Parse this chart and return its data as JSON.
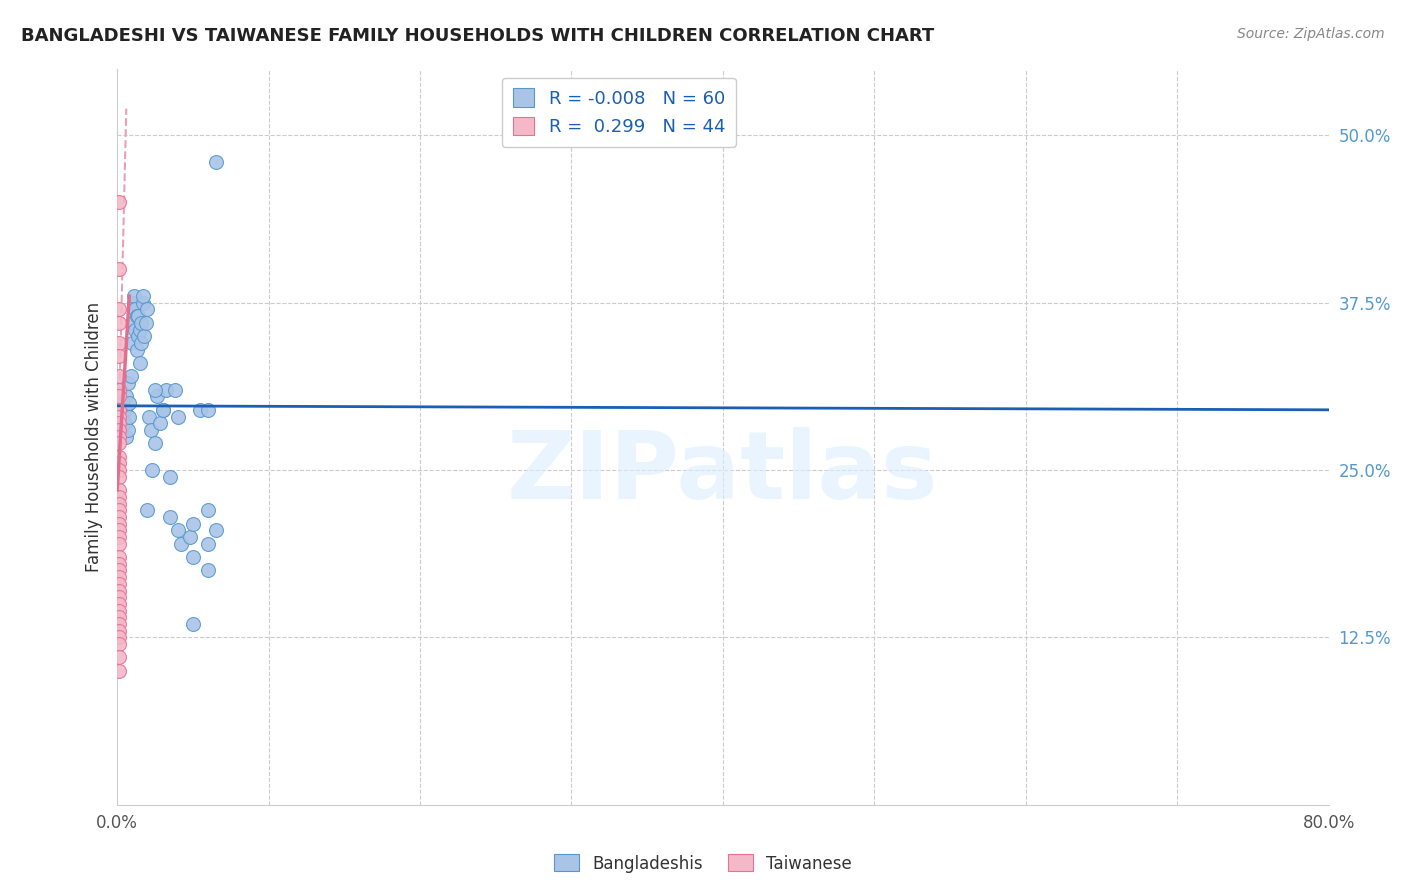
{
  "title": "BANGLADESHI VS TAIWANESE FAMILY HOUSEHOLDS WITH CHILDREN CORRELATION CHART",
  "source": "Source: ZipAtlas.com",
  "ylabel": "Family Households with Children",
  "bg_color": "#ffffff",
  "grid_color": "#cccccc",
  "watermark": "ZIPatlas",
  "bangladeshi_x": [
    0.002,
    0.003,
    0.004,
    0.004,
    0.005,
    0.005,
    0.006,
    0.006,
    0.007,
    0.007,
    0.008,
    0.008,
    0.009,
    0.01,
    0.01,
    0.011,
    0.011,
    0.012,
    0.012,
    0.013,
    0.013,
    0.014,
    0.014,
    0.015,
    0.015,
    0.016,
    0.016,
    0.017,
    0.017,
    0.018,
    0.019,
    0.02,
    0.021,
    0.022,
    0.023,
    0.025,
    0.026,
    0.028,
    0.03,
    0.032,
    0.035,
    0.038,
    0.042,
    0.048,
    0.02,
    0.025,
    0.03,
    0.035,
    0.04,
    0.05,
    0.055,
    0.06,
    0.04,
    0.05,
    0.06,
    0.06,
    0.05,
    0.065,
    0.06,
    0.065
  ],
  "bangladeshi_y": [
    0.31,
    0.295,
    0.285,
    0.3,
    0.295,
    0.285,
    0.305,
    0.275,
    0.315,
    0.28,
    0.3,
    0.29,
    0.32,
    0.345,
    0.36,
    0.375,
    0.38,
    0.355,
    0.37,
    0.365,
    0.34,
    0.365,
    0.35,
    0.355,
    0.33,
    0.36,
    0.345,
    0.375,
    0.38,
    0.35,
    0.36,
    0.37,
    0.29,
    0.28,
    0.25,
    0.27,
    0.305,
    0.285,
    0.295,
    0.31,
    0.245,
    0.31,
    0.195,
    0.2,
    0.22,
    0.31,
    0.295,
    0.215,
    0.29,
    0.135,
    0.295,
    0.175,
    0.205,
    0.21,
    0.195,
    0.22,
    0.185,
    0.48,
    0.295,
    0.205
  ],
  "taiwanese_x": [
    0.001,
    0.001,
    0.001,
    0.001,
    0.001,
    0.001,
    0.001,
    0.001,
    0.001,
    0.001,
    0.001,
    0.001,
    0.001,
    0.001,
    0.001,
    0.001,
    0.001,
    0.001,
    0.001,
    0.001,
    0.001,
    0.001,
    0.001,
    0.001,
    0.001,
    0.001,
    0.001,
    0.001,
    0.001,
    0.001,
    0.001,
    0.001,
    0.001,
    0.001,
    0.001,
    0.001,
    0.001,
    0.001,
    0.001,
    0.001,
    0.001,
    0.001,
    0.001,
    0.001
  ],
  "taiwanese_y": [
    0.45,
    0.4,
    0.37,
    0.36,
    0.345,
    0.335,
    0.32,
    0.31,
    0.305,
    0.295,
    0.29,
    0.285,
    0.28,
    0.275,
    0.27,
    0.26,
    0.255,
    0.25,
    0.245,
    0.235,
    0.23,
    0.225,
    0.22,
    0.215,
    0.21,
    0.205,
    0.2,
    0.195,
    0.185,
    0.18,
    0.175,
    0.17,
    0.165,
    0.16,
    0.155,
    0.15,
    0.145,
    0.14,
    0.135,
    0.13,
    0.125,
    0.12,
    0.11,
    0.1
  ],
  "bangladeshi_color": "#aac4e8",
  "bangladeshi_edge_color": "#5599cc",
  "taiwanese_color": "#f4b8c8",
  "taiwanese_edge_color": "#e87090",
  "trend_blue_color": "#1a5fb4",
  "trend_pink_color": "#e07090",
  "trend_pink_dashed_color": "#e8a0b8",
  "R_bangladeshi": -0.008,
  "N_bangladeshi": 60,
  "R_taiwanese": 0.299,
  "N_taiwanese": 44,
  "xlim": [
    0.0,
    0.8
  ],
  "ylim": [
    0.0,
    0.55
  ],
  "xticks": [
    0.0,
    0.1,
    0.2,
    0.3,
    0.4,
    0.5,
    0.6,
    0.7,
    0.8
  ],
  "xtick_labels": [
    "0.0%",
    "",
    "",
    "",
    "",
    "",
    "",
    "",
    "80.0%"
  ],
  "ytick_positions": [
    0.0,
    0.125,
    0.25,
    0.375,
    0.5
  ],
  "ytick_labels": [
    "",
    "12.5%",
    "25.0%",
    "37.5%",
    "50.0%"
  ],
  "legend_bangladeshis": "Bangladeshis",
  "legend_taiwanese": "Taiwanese",
  "marker_size": 100
}
